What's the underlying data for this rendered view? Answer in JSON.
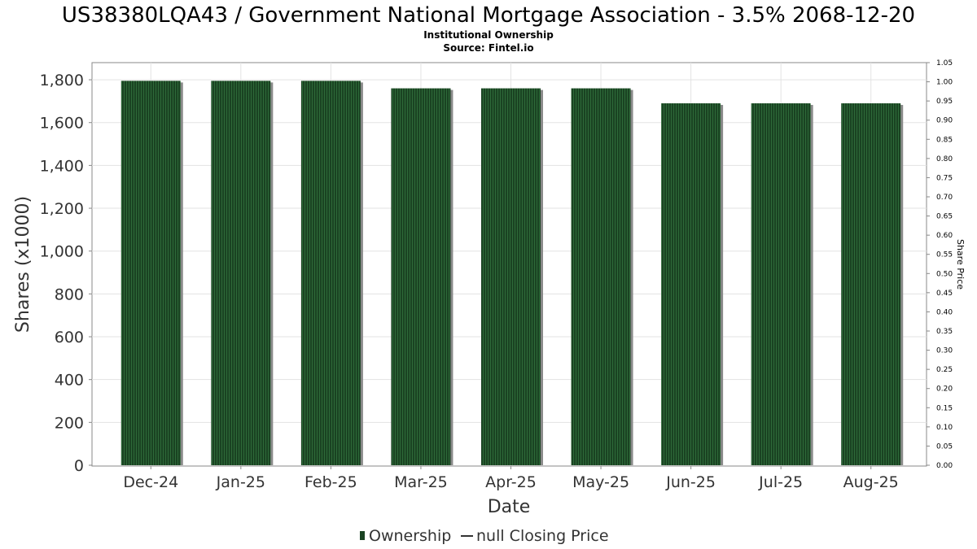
{
  "chart_data": {
    "type": "bar",
    "title": "US38380LQA43 / Government National Mortgage Association - 3.5% 2068-12-20",
    "subtitle_lines": [
      "Institutional Ownership",
      "Source: Fintel.io"
    ],
    "xlabel": "Date",
    "ylabel": "Shares (x1000)",
    "y2label": "Share Price",
    "categories": [
      "Dec-24",
      "Jan-25",
      "Feb-25",
      "Mar-25",
      "Apr-25",
      "May-25",
      "Jun-25",
      "Jul-25",
      "Aug-25"
    ],
    "series": [
      {
        "name": "Ownership",
        "values": [
          1795,
          1795,
          1795,
          1760,
          1760,
          1760,
          1690,
          1690,
          1690
        ]
      }
    ],
    "ylim": [
      0,
      1880
    ],
    "yticks": [
      0,
      200,
      400,
      600,
      800,
      1000,
      1200,
      1400,
      1600,
      1800
    ],
    "ytick_labels": [
      "0",
      "200",
      "400",
      "600",
      "800",
      "1,000",
      "1,200",
      "1,400",
      "1,600",
      "1,800"
    ],
    "y2lim": [
      0,
      1.05
    ],
    "y2ticks": [
      0,
      0.05,
      0.1,
      0.15,
      0.2,
      0.25,
      0.3,
      0.35,
      0.4,
      0.45,
      0.5,
      0.55,
      0.6,
      0.65,
      0.7,
      0.75,
      0.8,
      0.85,
      0.9,
      0.95,
      1.0,
      1.05
    ],
    "y2tick_labels": [
      "0.00",
      "0.05",
      "0.10",
      "0.15",
      "0.20",
      "0.25",
      "0.30",
      "0.35",
      "0.40",
      "0.45",
      "0.50",
      "0.55",
      "0.60",
      "0.65",
      "0.70",
      "0.75",
      "0.80",
      "0.85",
      "0.90",
      "0.95",
      "1.00",
      "1.05"
    ],
    "grid": true,
    "legend": {
      "placement": "bottom-center",
      "items": [
        "Ownership",
        "null Closing Price"
      ]
    },
    "colors": {
      "bar": "#1a4322",
      "bar_stripe": "#2e6a39",
      "bar_shadow": "#8a8a8a",
      "grid": "#e3e3e3",
      "axis": "#888888",
      "text": "#333333"
    }
  }
}
